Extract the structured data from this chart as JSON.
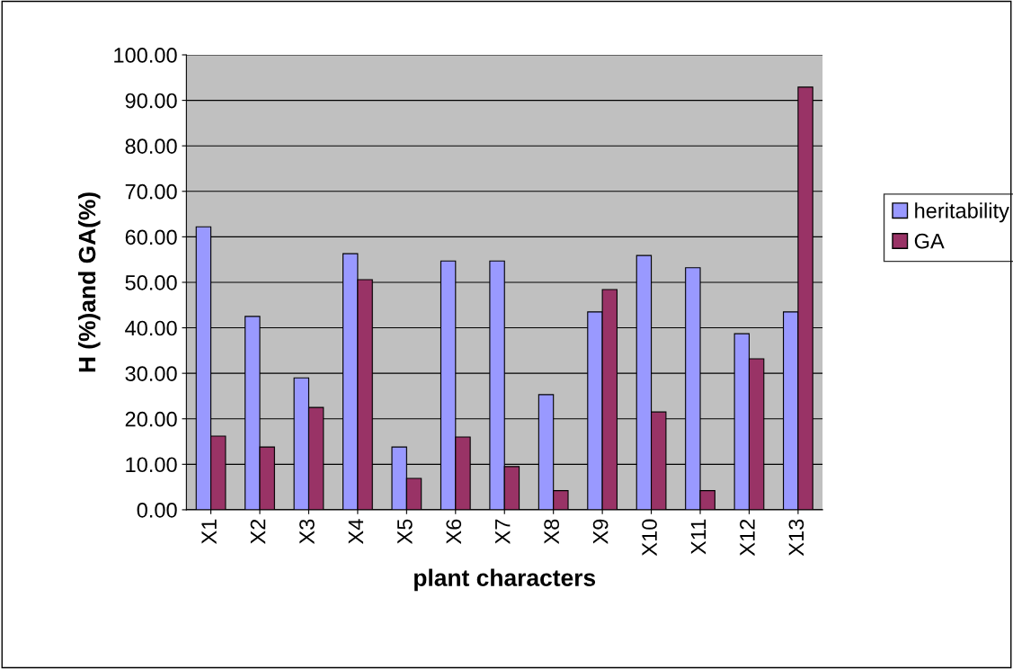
{
  "chart_data": {
    "type": "bar",
    "xlabel": "plant characters",
    "ylabel": "H (%)and GA(%)",
    "categories": [
      "X1",
      "X2",
      "X3",
      "X4",
      "X5",
      "X6",
      "X7",
      "X8",
      "X9",
      "X10",
      "X11",
      "X12",
      "X13"
    ],
    "series": [
      {
        "name": "heritability",
        "color": "#9999ff",
        "values": [
          62.2,
          42.5,
          29.0,
          56.3,
          13.8,
          54.7,
          54.7,
          25.3,
          43.5,
          55.9,
          53.2,
          38.7,
          43.5
        ]
      },
      {
        "name": "GA",
        "color": "#993366",
        "values": [
          16.2,
          13.8,
          22.5,
          50.6,
          6.9,
          16.0,
          9.5,
          4.2,
          48.4,
          21.5,
          4.2,
          33.2,
          92.9
        ]
      }
    ],
    "ylim": [
      0,
      100
    ],
    "yticks": [
      {
        "value": 0,
        "label": "0.00"
      },
      {
        "value": 10,
        "label": "10.00"
      },
      {
        "value": 20,
        "label": "20.00"
      },
      {
        "value": 30,
        "label": "30.00"
      },
      {
        "value": 40,
        "label": "40.00"
      },
      {
        "value": 50,
        "label": "50.00"
      },
      {
        "value": 60,
        "label": "60.00"
      },
      {
        "value": 70,
        "label": "70.00"
      },
      {
        "value": 80,
        "label": "80.00"
      },
      {
        "value": 90,
        "label": "90.00"
      },
      {
        "value": 100,
        "label": "100.00"
      }
    ],
    "grid": "y",
    "legend": "right"
  }
}
